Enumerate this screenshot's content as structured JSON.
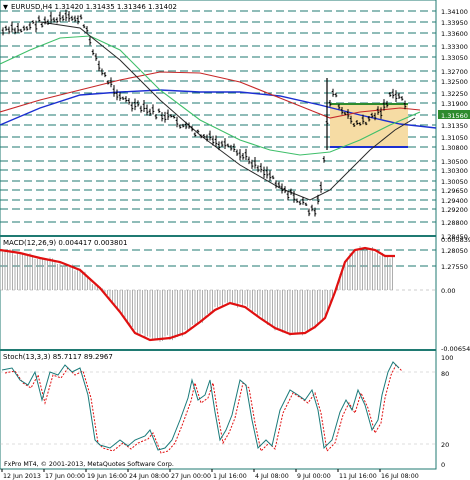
{
  "colors": {
    "background": "#ffffff",
    "grid_dashed": "#1f7a72",
    "panel_border": "#1f7a72",
    "price_bar": "#000000",
    "ma_blue": "#1b2fd1",
    "ma_red": "#c62828",
    "ma_green": "#3fbf6a",
    "ma_dark": "#2a2a2a",
    "range_box": "#f6dca4",
    "macd_line": "#e01010",
    "macd_hist": "#9a9a9a",
    "stoch_main": "#1a7a7a",
    "stoch_signal": "#e01010"
  },
  "main_panel": {
    "header": "EURUSD,H4  1.31420 1.31435 1.31346 1.31402",
    "price_labels": [
      "1.34100",
      "1.33950",
      "1.33600",
      "1.33300",
      "1.33050",
      "1.32700",
      "1.32500",
      "1.32250",
      "1.31900",
      "1.31560",
      "1.31350",
      "1.31050",
      "1.30800",
      "1.30500",
      "1.30300",
      "1.30050",
      "1.29650",
      "1.29400",
      "1.29200",
      "1.28800",
      "1.28450",
      "1.28050",
      "1.27550"
    ],
    "current_price": "1.31560",
    "range_box_levels": [
      "1.31350",
      "1.30050"
    ]
  },
  "macd_panel": {
    "header": "MACD(12,26,9) 0.004417 0.003801",
    "scale_labels": [
      "0.005839",
      "0.00",
      "-0.006545"
    ]
  },
  "stoch_panel": {
    "header": "Stoch(13,3,3) 85.7117 89.2967",
    "scale_labels": [
      "100",
      "80",
      "20",
      "0"
    ]
  },
  "footer": {
    "copyright": "FxPro MT4, © 2001-2013, MetaQuotes Software Corp."
  },
  "time_axis": [
    "12 Jun 2013",
    "17 Jun 00:00",
    "19 Jun 16:00",
    "24 Jun 08:00",
    "27 Jun 00:00",
    "1 Jul 16:00",
    "4 Jul 08:00",
    "9 Jul 00:00",
    "11 Jul 16:00",
    "16 Jul 08:00"
  ]
}
